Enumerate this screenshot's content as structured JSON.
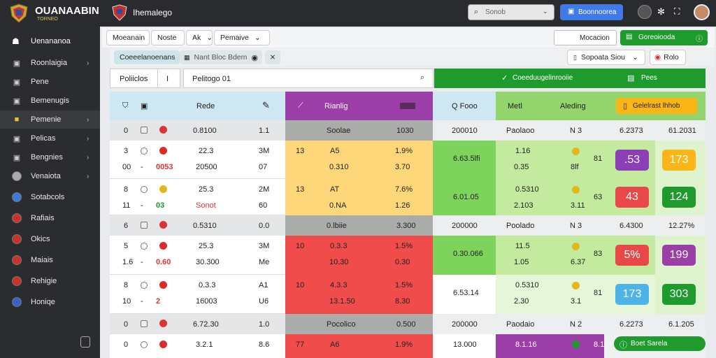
{
  "app": {
    "title": "OUANAABIN",
    "subtitle": "TORNEO",
    "tab_title": "Ihemalego"
  },
  "topbar": {
    "search_placeholder": "Sonob",
    "primary_button": "Boonnoorea",
    "icons": [
      "user-icon",
      "settings-icon",
      "help-icon",
      "profile-avatar"
    ]
  },
  "sidebar": {
    "title": "Uenananoa",
    "items": [
      {
        "label": "Roonlaigia",
        "icon": "flag-icon",
        "chevron": "›"
      },
      {
        "label": "Pene",
        "icon": "grid-icon"
      },
      {
        "label": "Bemenugis",
        "icon": "bookmark-icon"
      },
      {
        "label": "Pemenie",
        "icon": "star-icon",
        "chevron": "›",
        "active": true
      },
      {
        "label": "Pelicas",
        "icon": "list-icon",
        "chevron": "›"
      },
      {
        "label": "Bengnies",
        "icon": "trophy-icon",
        "chevron": "›"
      },
      {
        "label": "Venaiota",
        "icon": "flag-icon",
        "chevron": "›"
      },
      {
        "label": "Sotabcols",
        "icon": "globe-icon"
      },
      {
        "label": "Rafiais",
        "icon": "flag-icon"
      },
      {
        "label": "Okics",
        "icon": "flag-icon"
      },
      {
        "label": "Maiais",
        "icon": "flag-icon"
      },
      {
        "label": "Rehigie",
        "icon": "flag-icon"
      },
      {
        "label": "Honiqe",
        "icon": "flag-icon"
      }
    ]
  },
  "toolbar": {
    "tabs": [
      "Moeanain",
      "Noste",
      "Ak",
      "Pemaive"
    ],
    "right_button": "Mocacion",
    "green_button": "Goreoiooda"
  },
  "filter": {
    "chip1": "Coeeelanoenans",
    "chip2": "Nant Bloc Bdem",
    "sort_label": "Sopoata Siou",
    "right_chip": "Rolo"
  },
  "searchrow": {
    "label": "Poliiclos",
    "value": "I",
    "placeholder": "Pelitogo 01",
    "green_bar": "Coeeduugelinrooiie",
    "button": "Pees"
  },
  "header": {
    "col1": "Rede",
    "col2": "Rianlig",
    "col3": "Q Fooo",
    "col4": "Metl",
    "col5": "Aleding",
    "orange": "Gelelrast lhhob"
  },
  "rows": [
    {
      "type": "sep",
      "c1": "0",
      "c2": "0.8100",
      "c3": "1.1",
      "c4": "Soolae",
      "c5": "1030",
      "c6": "200010",
      "c7": "Paolaoo",
      "c8": "N 3",
      "c9": "6.2373",
      "c10": "61.2031"
    },
    {
      "type": "data",
      "color": "yellow",
      "a1": "3",
      "a2": "00",
      "v1": "22.3",
      "v2": "20500",
      "r1": "3M",
      "r2": "07",
      "q1": "13",
      "q2": "A5",
      "q3": "0.310",
      "q4": "1.9%",
      "q5": "3.70",
      "g1": "6.63.5lfi",
      "m1": "1.16",
      "m2": "0.35",
      "m3": "8lf",
      "m4": "81",
      "chip1": ".53",
      "chip2": "173",
      "t1": "0053"
    },
    {
      "type": "data",
      "color": "yellow",
      "a1": "8",
      "a2": "11",
      "v1": "25.3",
      "v2": "Sonot",
      "r1": "2M",
      "r2": "60",
      "q1": "13",
      "q2": "AT",
      "q3": "0.NA",
      "q4": "7.6%",
      "q5": "1.26",
      "g1": "6.01.05",
      "m1": "0.5310",
      "m2": "2.103",
      "m3": "3.11",
      "m4": "63",
      "chip1": "43",
      "chip2": "124",
      "t1": "03"
    },
    {
      "type": "sep",
      "c1": "6",
      "c2": "0.5310",
      "c3": "0.0",
      "c4": "0.lbiie",
      "c5": "3.300",
      "c6": "200000",
      "c7": "Poolado",
      "c8": "N 3",
      "c9": "6.4300",
      "c10": "12.27%"
    },
    {
      "type": "data",
      "color": "red",
      "a1": "5",
      "a2": "1.6",
      "v1": "25.3",
      "v2": "30.300",
      "r1": "3M",
      "r2": "Me",
      "q1": "10",
      "q2": "0.3.3",
      "q3": "10.30",
      "q4": "1.5%",
      "q5": "0.30",
      "g1": "0.30.066",
      "m1": "11.5",
      "m2": "1.05",
      "m3": "6.37",
      "m4": "83",
      "chip1": "5%",
      "chip2": "199",
      "t1": "0.60"
    },
    {
      "type": "data",
      "color": "red",
      "a1": "8",
      "a2": "10",
      "v1": "0.3.3",
      "v2": "16003",
      "r1": "A1",
      "r2": "U6",
      "q1": "10",
      "q2": "4.3.3",
      "q3": "13.1.50",
      "q4": "1.5%",
      "q5": "8.30",
      "g1": "6.53.14",
      "m1": "0.5310",
      "m2": "2.30",
      "m3": "3.1",
      "m4": "81",
      "chip1": "173",
      "chip2": "303",
      "t1": "2"
    },
    {
      "type": "sep",
      "c1": "0",
      "c2": "6.72.30",
      "c3": "1.0",
      "c4": "Pocolico",
      "c5": "0.500",
      "c6": "200000",
      "c7": "Paodaio",
      "c8": "N 2",
      "c9": "6.2273",
      "c10": "6.1.205"
    },
    {
      "type": "last",
      "a1": "0",
      "v1": "3.2.1",
      "r1": "8.6",
      "q1": "77",
      "q2": "A6",
      "q4": "1.9%",
      "g1": "13.000",
      "m1": "8.1.16",
      "m3": "8.1",
      "badge": "Boet Sarela"
    }
  ],
  "colors": {
    "yellow": "#fdd77a",
    "red": "#f04c4c",
    "green": "#7dd35c",
    "purple": "#9c3ea8",
    "lightgreen": "#c3ea9e",
    "blue": "#cde8f2"
  }
}
